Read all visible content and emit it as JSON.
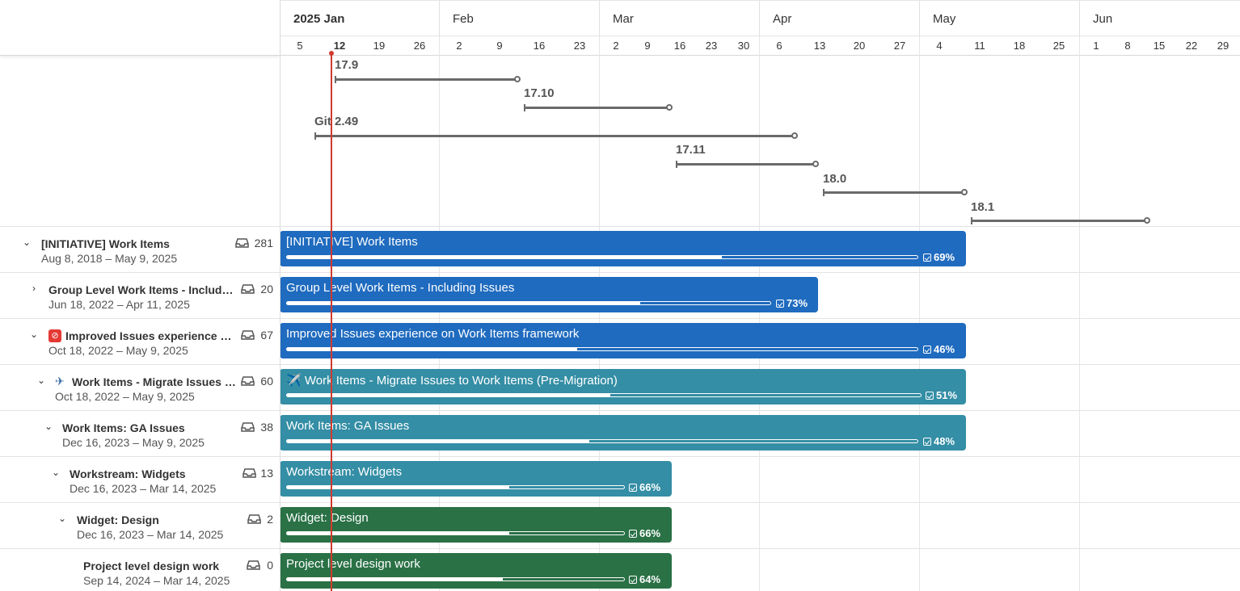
{
  "timeline": {
    "months": [
      "2025 Jan",
      "Feb",
      "Mar",
      "Apr",
      "May",
      "Jun"
    ],
    "weeks": [
      "5",
      "12",
      "19",
      "26",
      "2",
      "9",
      "16",
      "23",
      "2",
      "9",
      "16",
      "23",
      "30",
      "6",
      "13",
      "20",
      "27",
      "4",
      "11",
      "18",
      "25",
      "1",
      "8",
      "15",
      "22",
      "29"
    ],
    "current_week": "12"
  },
  "milestones": [
    {
      "label": "17.9"
    },
    {
      "label": "17.10"
    },
    {
      "label": "Git 2.49"
    },
    {
      "label": "17.11"
    },
    {
      "label": "18.0"
    },
    {
      "label": "18.1"
    }
  ],
  "rows": [
    {
      "title": "[INITIATIVE] Work Items",
      "dates": "Aug 8, 2018 – May 9, 2025",
      "count": "281",
      "expanded": true,
      "bar_title": "[INITIATIVE] Work Items",
      "progress": "69%",
      "color": "#1f6bbf"
    },
    {
      "title": "Group Level Work Items - Including Issues",
      "dates": "Jun 18, 2022 – Apr 11, 2025",
      "count": "20",
      "expanded": false,
      "bar_title": "Group Level Work Items - Including Issues",
      "progress": "73%",
      "color": "#1f6bbf"
    },
    {
      "title": "Improved Issues experience on Work Items framework",
      "dates": "Oct 18, 2022 – May 9, 2025",
      "count": "67",
      "expanded": true,
      "bar_title": "Improved Issues experience on Work Items framework",
      "progress": "46%",
      "color": "#1f6bbf"
    },
    {
      "title": "Work Items - Migrate Issues to Work Items (Pre-Migration)",
      "dates": "Oct 18, 2022 – May 9, 2025",
      "count": "60",
      "expanded": true,
      "bar_title": "Work Items - Migrate Issues to Work Items (Pre-Migration)",
      "progress": "51%",
      "color": "#348ea5"
    },
    {
      "title": "Work Items: GA Issues",
      "dates": "Dec 16, 2023 – May 9, 2025",
      "count": "38",
      "expanded": true,
      "bar_title": "Work Items: GA Issues",
      "progress": "48%",
      "color": "#348ea5"
    },
    {
      "title": "Workstream: Widgets",
      "dates": "Dec 16, 2023 – Mar 14, 2025",
      "count": "13",
      "expanded": true,
      "bar_title": "Workstream: Widgets",
      "progress": "66%",
      "color": "#348ea5"
    },
    {
      "title": "Widget: Design",
      "dates": "Dec 16, 2023 – Mar 14, 2025",
      "count": "2",
      "expanded": true,
      "bar_title": "Widget: Design",
      "progress": "66%",
      "color": "#2a7146"
    },
    {
      "title": "Project level design work",
      "dates": "Sep 14, 2024 – Mar 14, 2025",
      "count": "0",
      "expanded": false,
      "bar_title": "Project level design work",
      "progress": "64%",
      "color": "#2a7146"
    }
  ],
  "icons": {
    "row_chevron_expanded": "chevron-down-icon",
    "row_chevron_collapsed": "chevron-right-icon",
    "children_count": "stack-icon",
    "progress": "check-square-icon",
    "blocked": "blocked-emoji-icon",
    "airplane": "airplane-emoji-icon"
  },
  "colors": {
    "today_line": "#d03a2f",
    "milestone": "#6a6a6a"
  }
}
